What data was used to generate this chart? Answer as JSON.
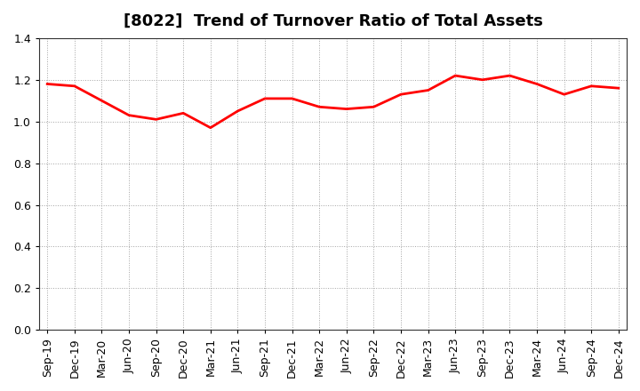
{
  "title": "[8022]  Trend of Turnover Ratio of Total Assets",
  "x_labels": [
    "Sep-19",
    "Dec-19",
    "Mar-20",
    "Jun-20",
    "Sep-20",
    "Dec-20",
    "Mar-21",
    "Jun-21",
    "Sep-21",
    "Dec-21",
    "Mar-22",
    "Jun-22",
    "Sep-22",
    "Dec-22",
    "Mar-23",
    "Jun-23",
    "Sep-23",
    "Dec-23",
    "Mar-24",
    "Jun-24",
    "Sep-24",
    "Dec-24"
  ],
  "values": [
    1.18,
    1.17,
    1.1,
    1.03,
    1.01,
    1.04,
    0.97,
    1.05,
    1.11,
    1.11,
    1.07,
    1.06,
    1.07,
    1.13,
    1.15,
    1.22,
    1.2,
    1.22,
    1.18,
    1.13,
    1.17,
    1.16
  ],
  "line_color": "#ff0000",
  "line_width": 2.0,
  "ylim": [
    0.0,
    1.4
  ],
  "yticks": [
    0.0,
    0.2,
    0.4,
    0.6,
    0.8,
    1.0,
    1.2,
    1.4
  ],
  "background_color": "#ffffff",
  "grid_color": "#999999",
  "title_fontsize": 13,
  "tick_fontsize": 9
}
